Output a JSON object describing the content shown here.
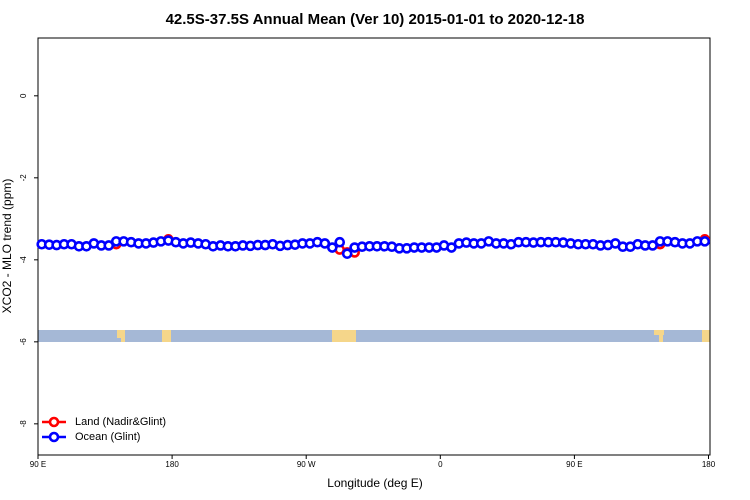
{
  "chart_data": {
    "type": "scatter",
    "title": "42.5S-37.5S Annual Mean (Ver 10)   2015-01-01 to 2020-12-18",
    "x_label": "Longitude (deg E)",
    "y_label": "XCO2 - MLO trend (ppm)",
    "xlim": [
      90,
      541
    ],
    "ylim": [
      -8.76,
      1.41
    ],
    "xticks": [
      {
        "value": 90,
        "label": "90 E"
      },
      180,
      {
        "value": 270,
        "label": "90 W"
      },
      {
        "value": 360,
        "label": "0"
      },
      {
        "value": 450,
        "label": "90 E"
      },
      {
        "value": 540,
        "label": "180"
      }
    ],
    "yticks": [
      -8,
      -6,
      -4,
      -2,
      0
    ],
    "legend": "bottom-left",
    "x": [
      92.5,
      97.5,
      102.5,
      107.5,
      112.5,
      117.5,
      122.5,
      127.5,
      132.5,
      137.5,
      142.5,
      147.5,
      152.5,
      157.5,
      162.5,
      167.5,
      172.5,
      177.5,
      182.5,
      187.5,
      192.5,
      197.5,
      202.5,
      207.5,
      212.5,
      217.5,
      222.5,
      227.5,
      232.5,
      237.5,
      242.5,
      247.5,
      252.5,
      257.5,
      262.5,
      267.5,
      272.5,
      277.5,
      282.5,
      287.5,
      292.5,
      297.5,
      302.5,
      307.5,
      312.5,
      317.5,
      322.5,
      327.5,
      332.5,
      337.5,
      342.5,
      347.5,
      352.5,
      357.5,
      362.5,
      367.5,
      372.5,
      377.5,
      382.5,
      387.5,
      392.5,
      397.5,
      402.5,
      407.5,
      412.5,
      417.5,
      422.5,
      427.5,
      432.5,
      437.5,
      442.5,
      447.5,
      452.5,
      457.5,
      462.5,
      467.5,
      472.5,
      477.5,
      482.5,
      487.5,
      492.5,
      497.5,
      502.5,
      507.5,
      512.5,
      517.5,
      522.5,
      527.5,
      532.5,
      537.5
    ],
    "series": [
      {
        "name": "Land (Nadir&Glint)",
        "color": "#ff0000",
        "values": [
          null,
          null,
          null,
          null,
          null,
          null,
          null,
          null,
          null,
          null,
          -3.62,
          null,
          null,
          null,
          null,
          null,
          null,
          -3.5,
          null,
          null,
          null,
          null,
          null,
          null,
          null,
          null,
          null,
          null,
          null,
          null,
          null,
          null,
          null,
          null,
          null,
          null,
          null,
          null,
          null,
          null,
          -3.75,
          -3.82,
          -3.82,
          null,
          null,
          null,
          null,
          null,
          null,
          null,
          null,
          null,
          null,
          null,
          null,
          null,
          null,
          null,
          null,
          null,
          null,
          null,
          null,
          null,
          null,
          null,
          null,
          null,
          null,
          null,
          null,
          null,
          null,
          null,
          null,
          null,
          null,
          null,
          null,
          null,
          null,
          null,
          null,
          -3.62,
          null,
          null,
          null,
          null,
          null,
          -3.5
        ]
      },
      {
        "name": "Ocean (Glint)",
        "color": "#0000ff",
        "values": [
          -3.62,
          -3.63,
          -3.64,
          -3.62,
          -3.62,
          -3.67,
          -3.67,
          -3.6,
          -3.65,
          -3.65,
          -3.55,
          -3.55,
          -3.57,
          -3.6,
          -3.6,
          -3.58,
          -3.55,
          -3.53,
          -3.57,
          -3.6,
          -3.58,
          -3.6,
          -3.62,
          -3.67,
          -3.65,
          -3.67,
          -3.67,
          -3.65,
          -3.66,
          -3.64,
          -3.64,
          -3.62,
          -3.66,
          -3.64,
          -3.63,
          -3.6,
          -3.6,
          -3.57,
          -3.6,
          -3.7,
          -3.57,
          -3.85,
          -3.7,
          -3.68,
          -3.67,
          -3.67,
          -3.67,
          -3.68,
          -3.72,
          -3.72,
          -3.7,
          -3.7,
          -3.7,
          -3.7,
          -3.65,
          -3.7,
          -3.6,
          -3.58,
          -3.6,
          -3.6,
          -3.55,
          -3.6,
          -3.6,
          -3.62,
          -3.57,
          -3.57,
          -3.58,
          -3.57,
          -3.57,
          -3.57,
          -3.58,
          -3.6,
          -3.62,
          -3.62,
          -3.62,
          -3.65,
          -3.64,
          -3.6,
          -3.68,
          -3.68,
          -3.62,
          -3.65,
          -3.65,
          -3.55,
          -3.55,
          -3.57,
          -3.6,
          -3.6,
          -3.55,
          -3.55
        ]
      }
    ]
  }
}
